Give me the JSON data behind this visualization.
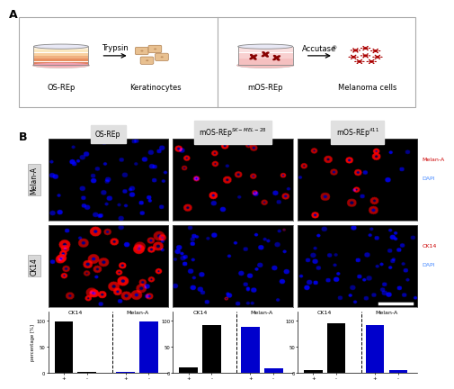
{
  "panel_A": {
    "left_label": "OS-REp",
    "right_label": "mOS-REp",
    "left_enzyme": "Trypsin",
    "right_enzyme": "Accutase®",
    "left_product": "Keratinocytes",
    "right_product": "Melanoma cells"
  },
  "panel_B": {
    "col_headers": [
      "OS-REp",
      "mOS-REp$^{SK-MEL-28}$",
      "mOS-REp$^{A11}$"
    ],
    "row_headers": [
      "Melan-A",
      "CK14"
    ]
  },
  "micro_images": {
    "row0_col0": {
      "n_blue": 55,
      "n_red": 0,
      "red_size": [
        3,
        5
      ]
    },
    "row0_col1": {
      "n_blue": 10,
      "n_red": 18,
      "red_size": [
        6,
        10
      ]
    },
    "row0_col2": {
      "n_blue": 8,
      "n_red": 14,
      "red_size": [
        7,
        11
      ]
    },
    "row1_col0": {
      "n_blue": 12,
      "n_red": 40,
      "red_size": [
        7,
        13
      ]
    },
    "row1_col1": {
      "n_blue": 50,
      "n_red": 2,
      "red_size": [
        3,
        5
      ]
    },
    "row1_col2": {
      "n_blue": 55,
      "n_red": 0,
      "red_size": [
        3,
        5
      ]
    }
  },
  "bar_charts": [
    {
      "ck14_vals": [
        98,
        2
      ],
      "melan_vals": [
        2,
        98
      ]
    },
    {
      "ck14_vals": [
        10,
        92
      ],
      "melan_vals": [
        88,
        8
      ]
    },
    {
      "ck14_vals": [
        5,
        95
      ],
      "melan_vals": [
        92,
        5
      ]
    }
  ],
  "bar_ylabel": "percentage [%]",
  "legend_row1": [
    "Melan-A",
    "DAPI"
  ],
  "legend_row2": [
    "CK14",
    "DAPI"
  ],
  "legend_colors": {
    "Melan-A": "#cc0000",
    "DAPI": "#4488ff",
    "CK14": "#cc0000"
  }
}
